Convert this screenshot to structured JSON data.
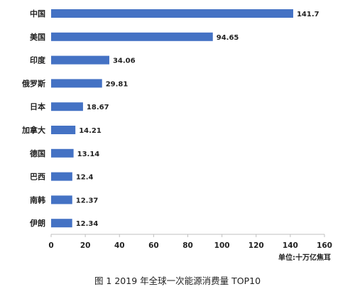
{
  "chart_data": {
    "type": "bar",
    "orientation": "horizontal",
    "categories": [
      "中国",
      "美国",
      "印度",
      "俄罗斯",
      "日本",
      "加拿大",
      "德国",
      "巴西",
      "南韩",
      "伊朗"
    ],
    "values": [
      141.7,
      94.65,
      34.06,
      29.81,
      18.67,
      14.21,
      13.14,
      12.4,
      12.37,
      12.34
    ],
    "value_labels": [
      "141.7",
      "94.65",
      "34.06",
      "29.81",
      "18.67",
      "14.21",
      "13.14",
      "12.4",
      "12.37",
      "12.34"
    ],
    "x_ticks": [
      "0",
      "20",
      "40",
      "60",
      "80",
      "100",
      "120",
      "140",
      "160"
    ],
    "xlim": [
      0,
      160
    ],
    "unit_label": "单位:十万亿焦耳",
    "bar_color": "#4472C4",
    "grid": false
  },
  "caption": "图 1 2019 年全球一次能源消费量 TOP10"
}
